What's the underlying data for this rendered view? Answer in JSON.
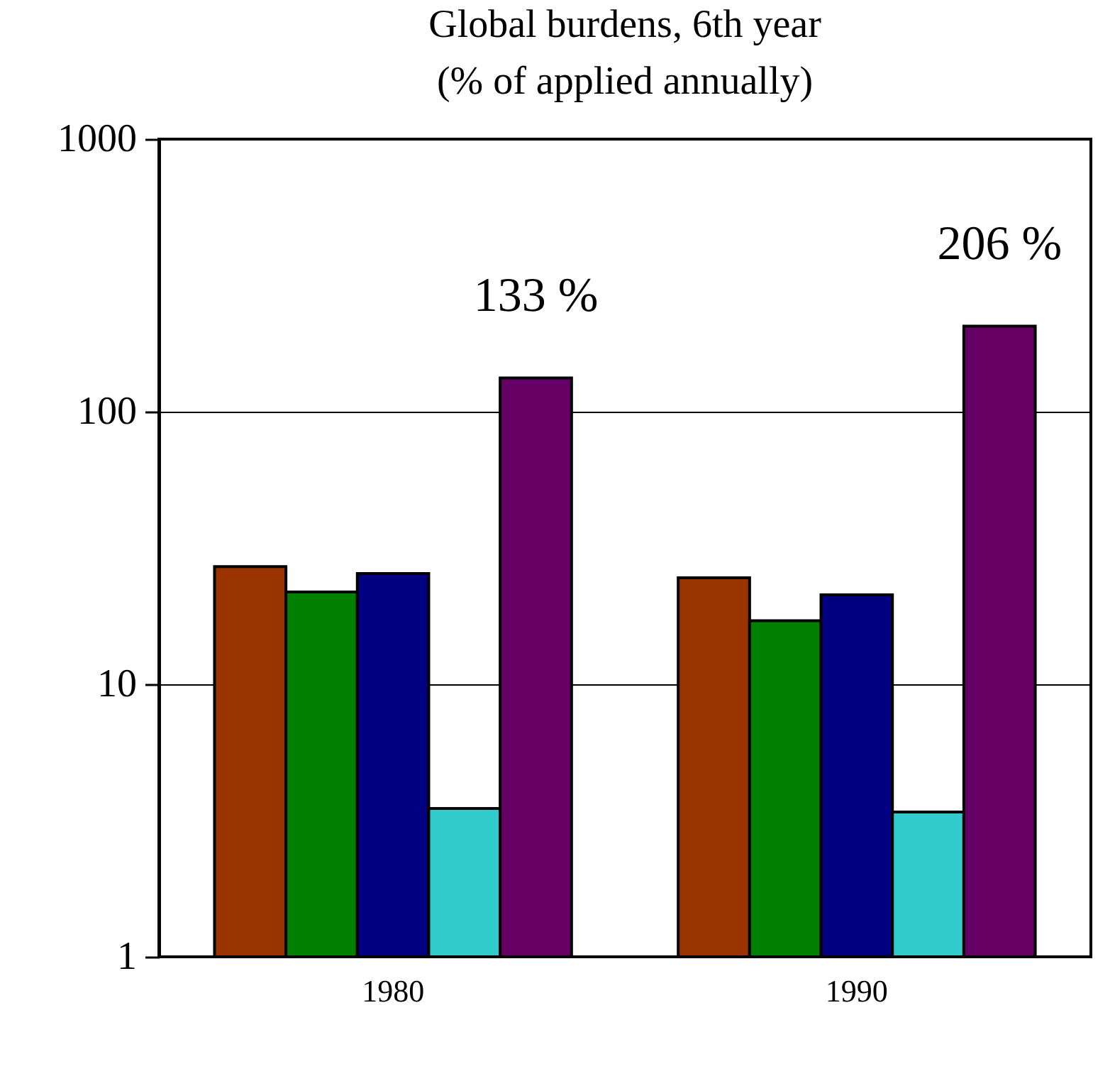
{
  "chart_data": {
    "type": "bar",
    "title": [
      "Global burdens, 6th year",
      "(% of applied annually)"
    ],
    "categories": [
      "1980",
      "1990"
    ],
    "series": [
      {
        "color": "#993300",
        "values": [
          27,
          24.6
        ]
      },
      {
        "color": "#008000",
        "values": [
          21.8,
          17.1
        ]
      },
      {
        "color": "#000080",
        "values": [
          25.5,
          21.3
        ]
      },
      {
        "color": "#33cccc",
        "values": [
          3.5,
          3.4
        ]
      },
      {
        "color": "#660066",
        "values": [
          133,
          206
        ],
        "value_labels": [
          "133 %",
          "206 %"
        ]
      }
    ],
    "log": "y",
    "ylim": [
      1,
      1000
    ],
    "yticks": [
      1,
      10,
      100,
      {
        "value": 1000,
        "label": "1000"
      }
    ],
    "grid": "y"
  }
}
